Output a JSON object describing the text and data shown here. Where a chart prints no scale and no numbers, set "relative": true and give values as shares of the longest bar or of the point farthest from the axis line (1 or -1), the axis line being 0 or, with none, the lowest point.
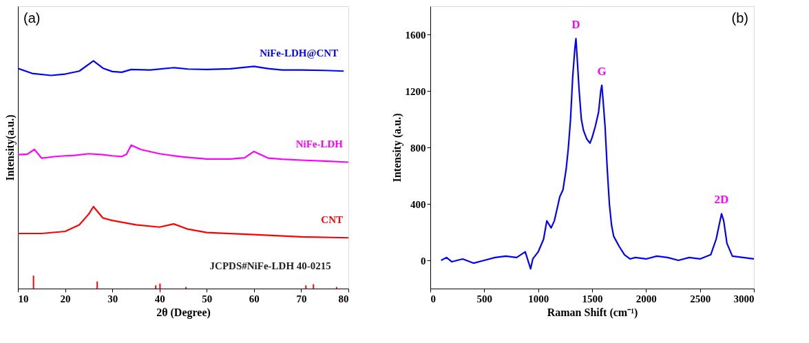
{
  "chart_data": [
    {
      "type": "line",
      "relative": true,
      "xlabel": "2θ (Degree)",
      "ylabel": "Intensity(a.u.)",
      "xlim": [
        10,
        80
      ],
      "xticks": [
        10,
        20,
        30,
        40,
        50,
        60,
        70,
        80
      ],
      "tick_labels": "x",
      "grid": false,
      "annotations": [
        "(a)"
      ],
      "series": [
        {
          "name": "NiFe-LDH@CNT",
          "color": "#0000ff",
          "x": [
            10,
            13,
            17,
            20,
            23,
            26,
            28,
            30,
            32,
            34,
            38,
            43,
            46,
            50,
            55,
            60,
            63,
            66,
            70,
            75,
            79
          ],
          "values": [
            0.967,
            0.945,
            0.936,
            0.942,
            0.955,
            1.0,
            0.968,
            0.953,
            0.95,
            0.962,
            0.96,
            0.97,
            0.964,
            0.962,
            0.965,
            0.976,
            0.966,
            0.96,
            0.96,
            0.958,
            0.955
          ]
        },
        {
          "name": "NiFe-LDH",
          "color": "#ff00ff",
          "x": [
            10,
            12,
            13.5,
            15,
            18,
            20,
            22,
            25,
            28,
            30,
            32,
            33,
            34,
            36,
            40,
            45,
            50,
            55,
            58,
            60,
            63,
            66,
            70,
            75,
            80
          ],
          "values": [
            0.588,
            0.59,
            0.611,
            0.573,
            0.58,
            0.583,
            0.585,
            0.592,
            0.588,
            0.583,
            0.58,
            0.59,
            0.63,
            0.611,
            0.592,
            0.578,
            0.569,
            0.569,
            0.574,
            0.602,
            0.573,
            0.568,
            0.564,
            0.56,
            0.555
          ]
        },
        {
          "name": "CNT",
          "color": "#ff0000",
          "x": [
            10,
            15,
            20,
            23,
            25,
            26,
            27,
            28,
            30,
            35,
            40,
            43,
            46,
            50,
            60,
            70,
            80
          ],
          "values": [
            0.242,
            0.242,
            0.251,
            0.28,
            0.327,
            0.36,
            0.335,
            0.31,
            0.299,
            0.28,
            0.27,
            0.284,
            0.261,
            0.246,
            0.237,
            0.227,
            0.223
          ]
        },
        {
          "name": "JCPDS#NiFe-LDH 40-0215",
          "type": "bar",
          "color": "#ff0000",
          "x": [
            13.3,
            26.8,
            39.2,
            40.1,
            45.6,
            71,
            72.6,
            77.5
          ],
          "values": [
            0.057,
            0.031,
            0.014,
            0.022,
            0.007,
            0.014,
            0.019,
            0.007
          ]
        }
      ]
    },
    {
      "type": "line",
      "xlabel": "Raman Shift (cm⁻¹)",
      "ylabel": "Intensity (a.u.)",
      "xlim": [
        0,
        3000
      ],
      "xticks": [
        0,
        500,
        1000,
        1500,
        2000,
        2500,
        3000
      ],
      "ylim": [
        -200,
        1800
      ],
      "yticks": [
        0,
        400,
        800,
        1200,
        1600
      ],
      "grid": false,
      "annotations": [
        "(b)",
        {
          "text": "D",
          "x": 1350,
          "y": 1570
        },
        {
          "text": "G",
          "x": 1590,
          "y": 1240
        },
        {
          "text": "2D",
          "x": 2700,
          "y": 330
        }
      ],
      "series": [
        {
          "color": "#0000ff",
          "x": [
            100,
            150,
            200,
            300,
            400,
            500,
            600,
            700,
            800,
            880,
            930,
            950,
            1000,
            1050,
            1080,
            1120,
            1150,
            1180,
            1200,
            1230,
            1260,
            1280,
            1300,
            1320,
            1340,
            1350,
            1360,
            1380,
            1400,
            1420,
            1450,
            1480,
            1500,
            1530,
            1560,
            1580,
            1590,
            1600,
            1620,
            1640,
            1660,
            1680,
            1700,
            1750,
            1800,
            1850,
            1900,
            2000,
            2100,
            2200,
            2300,
            2400,
            2500,
            2600,
            2650,
            2700,
            2720,
            2750,
            2800,
            2900,
            3000
          ],
          "values": [
            0,
            20,
            -10,
            10,
            -20,
            0,
            20,
            30,
            20,
            60,
            -60,
            10,
            60,
            150,
            280,
            230,
            280,
            380,
            450,
            500,
            650,
            800,
            1000,
            1300,
            1500,
            1570,
            1450,
            1200,
            1000,
            920,
            860,
            830,
            870,
            950,
            1050,
            1200,
            1240,
            1150,
            950,
            650,
            400,
            250,
            170,
            100,
            40,
            10,
            20,
            10,
            30,
            20,
            0,
            20,
            10,
            40,
            150,
            330,
            280,
            120,
            30,
            20,
            10
          ]
        }
      ]
    }
  ]
}
